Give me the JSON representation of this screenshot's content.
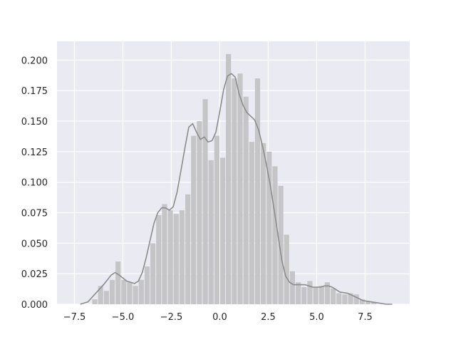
{
  "chart_data": {
    "type": "histogram",
    "title": "",
    "xlabel": "",
    "ylabel": "",
    "xlim": [
      -8.4,
      9.8
    ],
    "ylim": [
      0,
      0.2154
    ],
    "x_ticks": [
      -7.5,
      -5.0,
      -2.5,
      0.0,
      2.5,
      5.0,
      7.5
    ],
    "x_tick_labels": [
      "−7.5",
      "−5.0",
      "−2.5",
      "0.0",
      "2.5",
      "5.0",
      "7.5"
    ],
    "y_ticks": [
      0.0,
      0.025,
      0.05,
      0.075,
      0.1,
      0.125,
      0.15,
      0.175,
      0.2
    ],
    "y_tick_labels": [
      "0.000",
      "0.025",
      "0.050",
      "0.075",
      "0.100",
      "0.125",
      "0.150",
      "0.175",
      "0.200"
    ],
    "grid": true,
    "colors": {
      "background": "#eaeaf2",
      "grid": "#ffffff",
      "bars": "#c5c4c7",
      "kde_line": "#8c8c8c"
    },
    "bins": {
      "edges": [
        -6.6,
        -6.3,
        -6.0,
        -5.7,
        -5.4,
        -5.1,
        -4.8,
        -4.5,
        -4.2,
        -3.9,
        -3.6,
        -3.3,
        -3.0,
        -2.7,
        -2.4,
        -2.1,
        -1.8,
        -1.5,
        -1.2,
        -0.9,
        -0.6,
        -0.3,
        0.0,
        0.3,
        0.6,
        0.9,
        1.2,
        1.5,
        1.8,
        2.1,
        2.4,
        2.7,
        3.0,
        3.3,
        3.6,
        3.9,
        4.2,
        4.5,
        4.8,
        5.1,
        5.4,
        5.7,
        6.0,
        6.3,
        6.6,
        6.9,
        7.2,
        7.5,
        7.8,
        8.1
      ],
      "densities": [
        0.004,
        0.015,
        0.011,
        0.02,
        0.035,
        0.02,
        0.018,
        0.015,
        0.02,
        0.031,
        0.05,
        0.073,
        0.082,
        0.077,
        0.074,
        0.077,
        0.09,
        0.138,
        0.15,
        0.168,
        0.118,
        0.138,
        0.12,
        0.205,
        0.185,
        0.189,
        0.17,
        0.133,
        0.185,
        0.132,
        0.125,
        0.113,
        0.097,
        0.057,
        0.027,
        0.018,
        0.014,
        0.019,
        0.014,
        0.015,
        0.018,
        0.013,
        0.009,
        0.008,
        0.009,
        0.008,
        0.004,
        0.002,
        0.002
      ]
    },
    "kde": {
      "x": [
        -7.2,
        -6.8,
        -6.4,
        -6.0,
        -5.6,
        -5.4,
        -5.2,
        -4.8,
        -4.4,
        -4.2,
        -4.0,
        -3.8,
        -3.6,
        -3.4,
        -3.2,
        -3.0,
        -2.8,
        -2.6,
        -2.4,
        -2.2,
        -2.0,
        -1.8,
        -1.6,
        -1.4,
        -1.2,
        -1.0,
        -0.8,
        -0.6,
        -0.4,
        -0.2,
        0.0,
        0.2,
        0.4,
        0.6,
        0.8,
        1.0,
        1.2,
        1.4,
        1.6,
        1.8,
        2.0,
        2.2,
        2.4,
        2.6,
        2.8,
        3.0,
        3.2,
        3.4,
        3.6,
        3.8,
        4.0,
        4.2,
        4.4,
        4.6,
        4.8,
        5.0,
        5.2,
        5.4,
        5.6,
        5.8,
        6.0,
        6.2,
        6.6,
        7.0,
        7.4,
        7.8,
        8.2,
        8.6,
        8.9
      ],
      "y": [
        0.0,
        0.002,
        0.009,
        0.016,
        0.024,
        0.026,
        0.024,
        0.019,
        0.017,
        0.019,
        0.026,
        0.038,
        0.052,
        0.066,
        0.075,
        0.079,
        0.079,
        0.077,
        0.08,
        0.092,
        0.11,
        0.128,
        0.145,
        0.148,
        0.141,
        0.135,
        0.137,
        0.133,
        0.134,
        0.141,
        0.158,
        0.176,
        0.187,
        0.189,
        0.186,
        0.172,
        0.163,
        0.157,
        0.154,
        0.151,
        0.143,
        0.13,
        0.115,
        0.098,
        0.078,
        0.057,
        0.036,
        0.023,
        0.018,
        0.016,
        0.016,
        0.016,
        0.016,
        0.015,
        0.014,
        0.014,
        0.014,
        0.015,
        0.015,
        0.014,
        0.012,
        0.01,
        0.009,
        0.006,
        0.003,
        0.002,
        0.001,
        0.0,
        0.0
      ]
    }
  }
}
